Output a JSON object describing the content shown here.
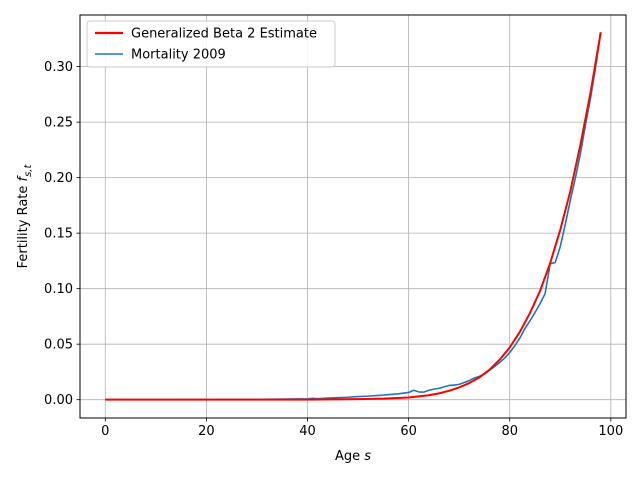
{
  "chart_data": {
    "type": "line",
    "xlabel": "Age s",
    "ylabel": "Fertility Rate f_{s,t}",
    "xlim": [
      -5,
      103
    ],
    "ylim": [
      -0.0165,
      0.3465
    ],
    "xticks": [
      0,
      20,
      40,
      60,
      80,
      100
    ],
    "yticks": [
      0.0,
      0.05,
      0.1,
      0.15,
      0.2,
      0.25,
      0.3
    ],
    "xtick_labels": [
      "0",
      "20",
      "40",
      "60",
      "80",
      "100"
    ],
    "ytick_labels": [
      "0.00",
      "0.05",
      "0.10",
      "0.15",
      "0.20",
      "0.25",
      "0.30"
    ],
    "grid": true,
    "legend_position": "upper-left",
    "series": [
      {
        "name": "Generalized Beta 2 Estimate",
        "color": "#ff0000",
        "x": [
          0,
          10,
          20,
          30,
          40,
          50,
          55,
          60,
          62,
          64,
          66,
          68,
          70,
          72,
          74,
          76,
          78,
          80,
          82,
          84,
          86,
          88,
          90,
          92,
          94,
          96,
          98
        ],
        "values": [
          0,
          0,
          0,
          0,
          0,
          0.0005,
          0.001,
          0.002,
          0.003,
          0.004,
          0.0057,
          0.008,
          0.011,
          0.015,
          0.02,
          0.027,
          0.036,
          0.047,
          0.061,
          0.078,
          0.098,
          0.123,
          0.153,
          0.188,
          0.23,
          0.277,
          0.331
        ]
      },
      {
        "name": "Mortality 2009",
        "color": "#1f77b4",
        "x": [
          0,
          10,
          20,
          30,
          40,
          41,
          42,
          44,
          46,
          48,
          50,
          52,
          54,
          56,
          58,
          60,
          61,
          62,
          63,
          64,
          65,
          66,
          67,
          68,
          69,
          70,
          71,
          72,
          73,
          74,
          75,
          76,
          77,
          78,
          79,
          80,
          81,
          82,
          83,
          84,
          85,
          86,
          87,
          88,
          89,
          90,
          91,
          92,
          93,
          94,
          95,
          96,
          97,
          98
        ],
        "values": [
          0,
          0,
          0.0001,
          0.0002,
          0.0008,
          0.0012,
          0.0009,
          0.0015,
          0.0018,
          0.0022,
          0.0028,
          0.0032,
          0.0038,
          0.0045,
          0.0053,
          0.0065,
          0.0085,
          0.007,
          0.0068,
          0.0085,
          0.0095,
          0.0102,
          0.0115,
          0.0128,
          0.0132,
          0.0138,
          0.0155,
          0.0172,
          0.0195,
          0.021,
          0.0232,
          0.0265,
          0.0298,
          0.0335,
          0.0375,
          0.0425,
          0.0485,
          0.0555,
          0.064,
          0.071,
          0.0785,
          0.0865,
          0.0955,
          0.1225,
          0.1235,
          0.138,
          0.158,
          0.18,
          0.2,
          0.222,
          0.248,
          0.272,
          0.3,
          0.33
        ]
      }
    ]
  }
}
